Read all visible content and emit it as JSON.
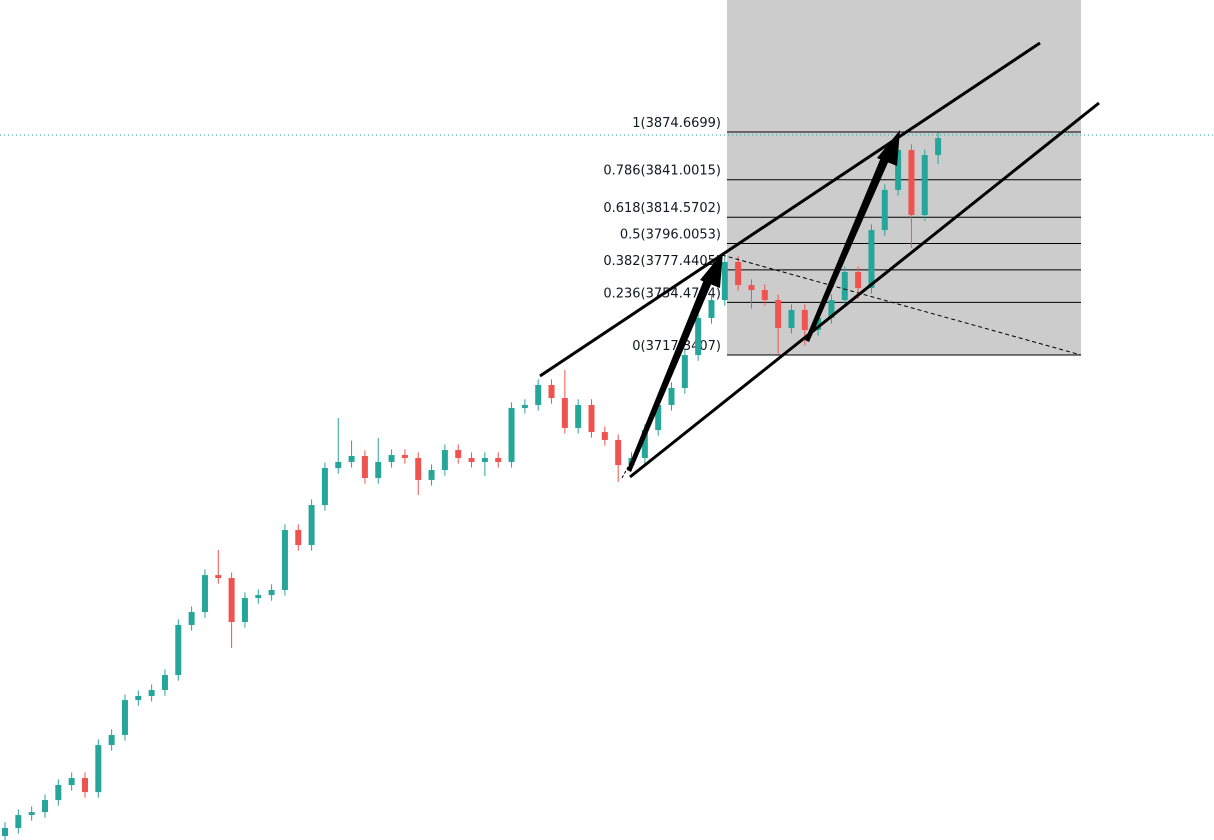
{
  "chart_data": {
    "type": "candlestick",
    "ylim": [
      3375.2,
      3967.8
    ],
    "colors": {
      "up": "#26a69a",
      "down": "#ef5350"
    },
    "fib_levels": [
      {
        "label": "1(3874.6699)",
        "price": 3874.6699
      },
      {
        "label": "0.786(3841.0015)",
        "price": 3841.0015
      },
      {
        "label": "0.618(3814.5702)",
        "price": 3814.5702
      },
      {
        "label": "0.5(3796.0053)",
        "price": 3796.0053
      },
      {
        "label": "0.382(3777.4405)",
        "price": 3777.4405
      },
      {
        "label": "0.236(3754.4704)",
        "price": 3754.4704
      },
      {
        "label": "0(3717.3407)",
        "price": 3717.3407
      }
    ],
    "ohlc": [
      [
        3378.0,
        3387.7,
        3374.0,
        3383.7
      ],
      [
        3383.7,
        3396.8,
        3379.7,
        3392.8
      ],
      [
        3392.8,
        3398.9,
        3388.8,
        3394.9
      ],
      [
        3394.9,
        3407.4,
        3390.9,
        3403.4
      ],
      [
        3403.4,
        3418.0,
        3399.4,
        3414.0
      ],
      [
        3414.0,
        3422.9,
        3410.0,
        3418.9
      ],
      [
        3418.9,
        3422.9,
        3405.0,
        3409.0
      ],
      [
        3409.0,
        3446.2,
        3405.0,
        3442.2
      ],
      [
        3442.2,
        3453.3,
        3438.2,
        3449.3
      ],
      [
        3449.3,
        3477.9,
        3445.3,
        3473.9
      ],
      [
        3473.9,
        3480.8,
        3469.9,
        3476.8
      ],
      [
        3476.8,
        3485.0,
        3472.8,
        3481.0
      ],
      [
        3481.0,
        3495.6,
        3477.0,
        3491.6
      ],
      [
        3491.6,
        3530.9,
        3487.6,
        3526.9
      ],
      [
        3526.9,
        3540.0,
        3522.9,
        3536.0
      ],
      [
        3536.0,
        3566.1,
        3532.0,
        3562.1
      ],
      [
        3562.1,
        3579.8,
        3556.0,
        3560.0
      ],
      [
        3560.0,
        3564.0,
        3510.6,
        3529.0
      ],
      [
        3529.0,
        3549.9,
        3525.0,
        3545.9
      ],
      [
        3545.9,
        3552.0,
        3541.9,
        3548.0
      ],
      [
        3548.0,
        3555.6,
        3544.0,
        3551.6
      ],
      [
        3551.6,
        3597.9,
        3547.6,
        3593.9
      ],
      [
        3593.9,
        3597.9,
        3579.3,
        3583.3
      ],
      [
        3583.3,
        3615.5,
        3579.3,
        3611.5
      ],
      [
        3611.5,
        3641.6,
        3607.5,
        3637.6
      ],
      [
        3637.6,
        3672.9,
        3633.6,
        3641.9
      ],
      [
        3641.9,
        3657.0,
        3637.9,
        3646.1
      ],
      [
        3646.1,
        3650.1,
        3626.6,
        3630.6
      ],
      [
        3630.6,
        3658.8,
        3626.6,
        3641.9
      ],
      [
        3641.9,
        3650.8,
        3637.9,
        3646.8
      ],
      [
        3646.8,
        3650.8,
        3640.7,
        3644.7
      ],
      [
        3644.7,
        3648.7,
        3618.6,
        3629.2
      ],
      [
        3629.2,
        3640.2,
        3625.2,
        3636.2
      ],
      [
        3636.2,
        3654.3,
        3632.2,
        3650.3
      ],
      [
        3650.3,
        3654.3,
        3640.7,
        3644.7
      ],
      [
        3644.7,
        3648.7,
        3637.9,
        3641.9
      ],
      [
        3641.9,
        3648.7,
        3632.0,
        3644.7
      ],
      [
        3644.7,
        3648.7,
        3637.9,
        3641.9
      ],
      [
        3641.9,
        3684.0,
        3637.9,
        3680.0
      ],
      [
        3680.0,
        3686.1,
        3676.0,
        3682.1
      ],
      [
        3682.1,
        3700.2,
        3678.1,
        3696.2
      ],
      [
        3696.2,
        3700.2,
        3683.0,
        3687.0
      ],
      [
        3687.0,
        3706.8,
        3661.9,
        3665.9
      ],
      [
        3665.9,
        3686.1,
        3661.9,
        3682.1
      ],
      [
        3682.1,
        3686.1,
        3659.0,
        3663.0
      ],
      [
        3663.0,
        3667.0,
        3653.4,
        3657.4
      ],
      [
        3657.4,
        3661.4,
        3627.8,
        3639.7
      ],
      [
        3639.7,
        3648.7,
        3635.7,
        3644.7
      ],
      [
        3644.7,
        3668.4,
        3640.7,
        3664.4
      ],
      [
        3664.4,
        3686.1,
        3660.4,
        3682.1
      ],
      [
        3682.1,
        3698.1,
        3678.1,
        3694.1
      ],
      [
        3694.1,
        3721.3,
        3690.1,
        3717.3
      ],
      [
        3717.3,
        3747.5,
        3713.3,
        3743.5
      ],
      [
        3743.5,
        3760.1,
        3739.5,
        3756.1
      ],
      [
        3756.1,
        3787.0,
        3752.1,
        3783.0
      ],
      [
        3783.0,
        3787.0,
        3762.7,
        3766.7
      ],
      [
        3766.7,
        3770.7,
        3750.0,
        3763.2
      ],
      [
        3763.2,
        3767.2,
        3752.1,
        3756.1
      ],
      [
        3756.1,
        3760.1,
        3718.0,
        3736.4
      ],
      [
        3736.4,
        3753.1,
        3732.4,
        3749.1
      ],
      [
        3749.1,
        3753.1,
        3724.0,
        3735.0
      ],
      [
        3735.0,
        3747.5,
        3731.0,
        3743.5
      ],
      [
        3743.5,
        3760.1,
        3739.5,
        3756.1
      ],
      [
        3756.1,
        3779.9,
        3752.1,
        3775.9
      ],
      [
        3775.9,
        3779.9,
        3757.0,
        3764.6
      ],
      [
        3764.6,
        3809.5,
        3760.6,
        3805.5
      ],
      [
        3805.5,
        3837.8,
        3801.5,
        3833.8
      ],
      [
        3833.8,
        3874.7,
        3829.8,
        3862.0
      ],
      [
        3862.0,
        3866.0,
        3793.0,
        3816.1
      ],
      [
        3816.1,
        3862.4,
        3812.1,
        3858.4
      ],
      [
        3858.4,
        3874.4,
        3852.0,
        3870.4
      ]
    ]
  }
}
